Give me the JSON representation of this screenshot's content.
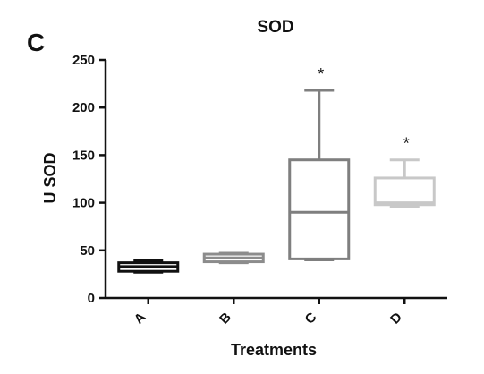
{
  "panel_label": "C",
  "chart_data": {
    "type": "box",
    "title": "SOD",
    "xlabel": "Treatments",
    "ylabel": "U SOD",
    "ylim": [
      0,
      250
    ],
    "yticks": [
      0,
      50,
      100,
      150,
      200,
      250
    ],
    "grid": false,
    "categories": [
      "A",
      "B",
      "C",
      "D"
    ],
    "boxes": [
      {
        "category": "A",
        "min": 27,
        "q1": 28,
        "median": 33,
        "q3": 37,
        "max": 39,
        "color": "#111111",
        "annotation": ""
      },
      {
        "category": "B",
        "min": 37,
        "q1": 38,
        "median": 42,
        "q3": 46,
        "max": 47,
        "color": "#8c8c8c",
        "annotation": ""
      },
      {
        "category": "C",
        "min": 40,
        "q1": 41,
        "median": 90,
        "q3": 145,
        "max": 218,
        "color": "#7f7f7f",
        "annotation": "*"
      },
      {
        "category": "D",
        "min": 96,
        "q1": 98,
        "median": 100,
        "q3": 126,
        "max": 145,
        "color": "#c8c8c8",
        "annotation": "*"
      }
    ]
  }
}
